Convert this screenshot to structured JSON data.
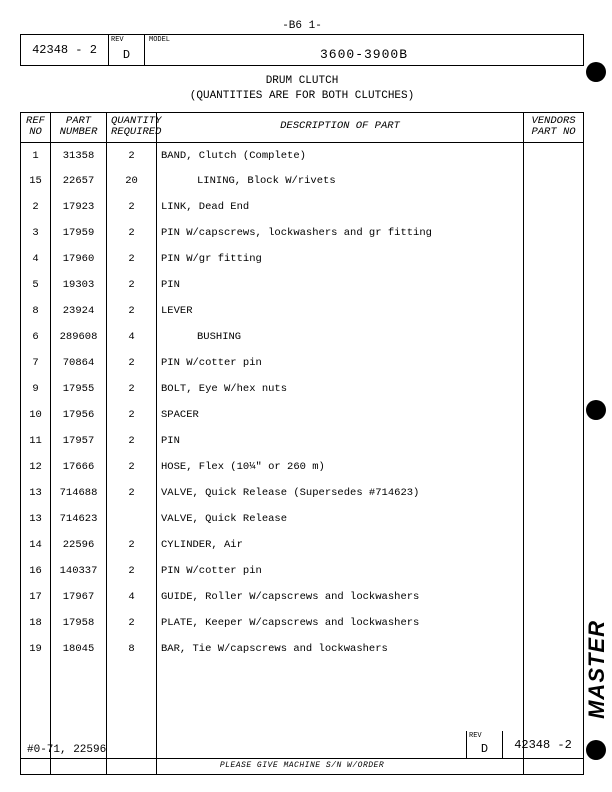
{
  "page_code": "-B6 1-",
  "header": {
    "doc_number": "42348 - 2",
    "rev_label": "REV",
    "rev": "D",
    "model_label": "MODEL",
    "model": "3600-3900B"
  },
  "title_line1": "DRUM CLUTCH",
  "title_line2": "(QUANTITIES ARE FOR BOTH CLUTCHES)",
  "columns": {
    "ref": "REF\nNO",
    "part": "PART\nNUMBER",
    "qty": "QUANTITY\nREQUIRED",
    "desc": "DESCRIPTION OF PART",
    "vend": "VENDORS\nPART NO"
  },
  "rows": [
    {
      "ref": "1",
      "part": "31358",
      "qty": "2",
      "desc": "BAND, Clutch (Complete)",
      "indent": 0
    },
    {
      "ref": "15",
      "part": "22657",
      "qty": "20",
      "desc": "LINING, Block W/rivets",
      "indent": 1
    },
    {
      "ref": "2",
      "part": "17923",
      "qty": "2",
      "desc": "LINK, Dead End",
      "indent": 0
    },
    {
      "ref": "3",
      "part": "17959",
      "qty": "2",
      "desc": "PIN W/capscrews, lockwashers and gr  fitting",
      "indent": 0
    },
    {
      "ref": "4",
      "part": "17960",
      "qty": "2",
      "desc": "PIN W/gr  fitting",
      "indent": 0
    },
    {
      "ref": "5",
      "part": "19303",
      "qty": "2",
      "desc": "PIN",
      "indent": 0
    },
    {
      "ref": "8",
      "part": "23924",
      "qty": "2",
      "desc": "LEVER",
      "indent": 0
    },
    {
      "ref": "6",
      "part": "289608",
      "qty": "4",
      "desc": "BUSHING",
      "indent": 1
    },
    {
      "ref": "7",
      "part": "70864",
      "qty": "2",
      "desc": "PIN W/cotter pin",
      "indent": 0
    },
    {
      "ref": "9",
      "part": "17955",
      "qty": "2",
      "desc": "BOLT, Eye W/hex nuts",
      "indent": 0
    },
    {
      "ref": "10",
      "part": "17956",
      "qty": "2",
      "desc": "SPACER",
      "indent": 0
    },
    {
      "ref": "11",
      "part": "17957",
      "qty": "2",
      "desc": "PIN",
      "indent": 0
    },
    {
      "ref": "12",
      "part": "17666",
      "qty": "2",
      "desc": "HOSE, Flex (10¼\" or  260 m)",
      "indent": 0
    },
    {
      "ref": "13",
      "part": "714688",
      "qty": "2",
      "desc": "VALVE, Quick Release (Supersedes #714623)",
      "indent": 0
    },
    {
      "ref": "13",
      "part": "714623",
      "qty": "",
      "desc": "VALVE, Quick Release",
      "indent": 0
    },
    {
      "ref": "14",
      "part": "22596",
      "qty": "2",
      "desc": "CYLINDER, Air",
      "indent": 0
    },
    {
      "ref": "16",
      "part": "140337",
      "qty": "2",
      "desc": "PIN W/cotter pin",
      "indent": 0
    },
    {
      "ref": "17",
      "part": "17967",
      "qty": "4",
      "desc": "GUIDE, Roller W/capscrews and lockwashers",
      "indent": 0
    },
    {
      "ref": "18",
      "part": "17958",
      "qty": "2",
      "desc": "PLATE, Keeper W/capscrews and lockwashers",
      "indent": 0
    },
    {
      "ref": "19",
      "part": "18045",
      "qty": "8",
      "desc": "BAR, Tie W/capscrews and lockwashers",
      "indent": 0
    }
  ],
  "footer": {
    "note_left": "#0-71, 22596",
    "rev_label": "REV",
    "rev": "D",
    "doc_number": "42348 -2",
    "bottom_note": "PLEASE GIVE MACHINE S/N W/ORDER"
  },
  "side_stamp": "MASTER"
}
